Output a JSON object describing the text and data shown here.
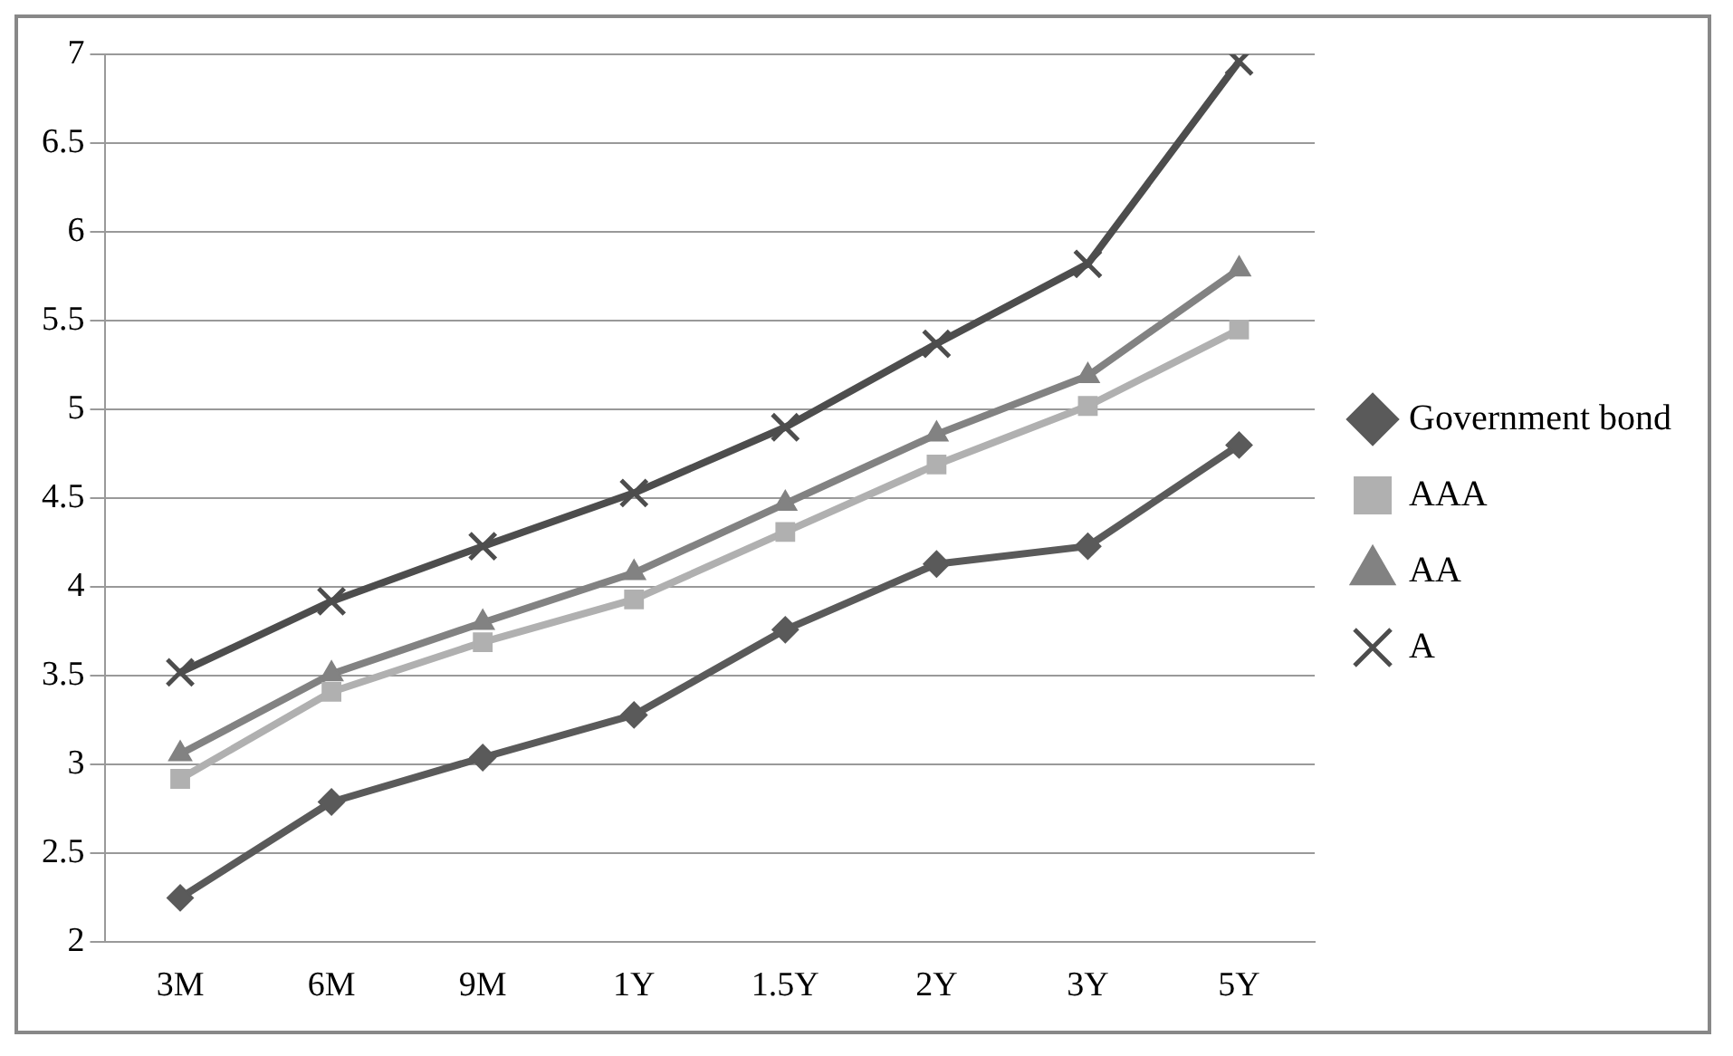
{
  "chart_data": {
    "type": "line",
    "categories": [
      "3M",
      "6M",
      "9M",
      "1Y",
      "1.5Y",
      "2Y",
      "3Y",
      "5Y"
    ],
    "series": [
      {
        "name": "Government bond",
        "color": "#5a5a5a",
        "marker": "diamond",
        "values": [
          2.25,
          2.79,
          3.04,
          3.28,
          3.76,
          4.13,
          4.23,
          4.8
        ]
      },
      {
        "name": "AAA",
        "color": "#b0b0b0",
        "marker": "square",
        "values": [
          2.92,
          3.41,
          3.69,
          3.93,
          4.31,
          4.69,
          5.02,
          5.45
        ]
      },
      {
        "name": "AA",
        "color": "#828282",
        "marker": "triangle",
        "values": [
          3.06,
          3.51,
          3.8,
          4.08,
          4.47,
          4.86,
          5.19,
          5.79
        ]
      },
      {
        "name": "A",
        "color": "#4d4d4d",
        "marker": "cross",
        "values": [
          3.52,
          3.92,
          4.23,
          4.53,
          4.9,
          5.37,
          5.82,
          6.96
        ]
      }
    ],
    "ylim": [
      2,
      7
    ],
    "yticks": [
      2,
      2.5,
      3,
      3.5,
      4,
      4.5,
      5,
      5.5,
      6,
      6.5,
      7
    ],
    "grid": "y",
    "legend": "right",
    "line_style": "solid"
  }
}
